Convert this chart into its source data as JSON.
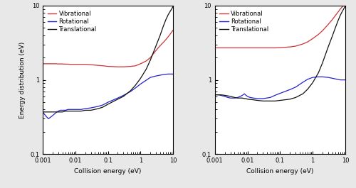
{
  "xlim": [
    0.001,
    10
  ],
  "ylim": [
    0.1,
    10
  ],
  "xlabel": "Collision energy (eV)",
  "ylabel": "Energy distribution (eV)",
  "legend_labels": [
    "Vibrational",
    "Rotational",
    "Translational"
  ],
  "legend_colors": [
    "#cc3333",
    "#2222cc",
    "#111111"
  ],
  "panel_left": {
    "vibrational": {
      "x": [
        0.001,
        0.0013,
        0.0016,
        0.002,
        0.0025,
        0.003,
        0.004,
        0.005,
        0.006,
        0.007,
        0.008,
        0.009,
        0.01,
        0.015,
        0.02,
        0.03,
        0.05,
        0.07,
        0.1,
        0.2,
        0.3,
        0.5,
        0.7,
        1.0,
        1.5,
        2.0,
        3.0,
        4.0,
        5.0,
        6.0,
        7.0,
        8.0,
        10.0
      ],
      "y": [
        1.65,
        1.65,
        1.65,
        1.65,
        1.65,
        1.64,
        1.64,
        1.63,
        1.63,
        1.62,
        1.62,
        1.62,
        1.62,
        1.62,
        1.62,
        1.6,
        1.57,
        1.55,
        1.52,
        1.5,
        1.5,
        1.52,
        1.55,
        1.65,
        1.8,
        2.0,
        2.5,
        2.9,
        3.2,
        3.5,
        3.8,
        4.1,
        4.7
      ]
    },
    "rotational": {
      "x": [
        0.001,
        0.0011,
        0.0013,
        0.0015,
        0.002,
        0.0025,
        0.003,
        0.0035,
        0.004,
        0.005,
        0.006,
        0.007,
        0.008,
        0.009,
        0.01,
        0.015,
        0.02,
        0.03,
        0.05,
        0.07,
        0.1,
        0.2,
        0.3,
        0.5,
        0.7,
        1.0,
        2.0,
        3.0,
        5.0,
        7.0,
        10.0
      ],
      "y": [
        0.37,
        0.35,
        0.32,
        0.3,
        0.33,
        0.36,
        0.38,
        0.39,
        0.39,
        0.39,
        0.4,
        0.4,
        0.4,
        0.4,
        0.4,
        0.4,
        0.41,
        0.42,
        0.44,
        0.46,
        0.5,
        0.57,
        0.62,
        0.7,
        0.78,
        0.88,
        1.08,
        1.13,
        1.18,
        1.2,
        1.2
      ]
    },
    "translational": {
      "x": [
        0.001,
        0.0012,
        0.0015,
        0.002,
        0.003,
        0.004,
        0.005,
        0.006,
        0.007,
        0.008,
        0.009,
        0.01,
        0.015,
        0.02,
        0.03,
        0.05,
        0.07,
        0.1,
        0.2,
        0.3,
        0.5,
        0.7,
        1.0,
        1.5,
        2.0,
        3.0,
        4.0,
        5.0,
        6.0,
        7.0,
        8.0,
        9.0,
        10.0
      ],
      "y": [
        0.37,
        0.37,
        0.37,
        0.37,
        0.37,
        0.37,
        0.38,
        0.38,
        0.38,
        0.38,
        0.38,
        0.38,
        0.38,
        0.39,
        0.39,
        0.41,
        0.43,
        0.47,
        0.55,
        0.6,
        0.72,
        0.85,
        1.05,
        1.4,
        1.85,
        2.9,
        4.0,
        5.3,
        6.5,
        7.5,
        8.3,
        9.0,
        9.8
      ]
    }
  },
  "panel_right": {
    "vibrational": {
      "x": [
        0.001,
        0.0013,
        0.0016,
        0.002,
        0.003,
        0.004,
        0.005,
        0.006,
        0.007,
        0.008,
        0.009,
        0.01,
        0.015,
        0.02,
        0.03,
        0.05,
        0.07,
        0.1,
        0.2,
        0.3,
        0.5,
        0.7,
        1.0,
        1.5,
        2.0,
        3.0,
        4.0,
        5.0,
        6.0,
        7.0,
        8.0,
        10.0
      ],
      "y": [
        2.7,
        2.7,
        2.7,
        2.7,
        2.7,
        2.7,
        2.7,
        2.7,
        2.7,
        2.7,
        2.7,
        2.7,
        2.7,
        2.7,
        2.7,
        2.7,
        2.7,
        2.72,
        2.78,
        2.85,
        3.05,
        3.25,
        3.6,
        4.1,
        4.6,
        5.6,
        6.5,
        7.4,
        8.2,
        9.0,
        9.6,
        10.5
      ]
    },
    "rotational": {
      "x": [
        0.001,
        0.0011,
        0.0013,
        0.0015,
        0.002,
        0.0025,
        0.003,
        0.004,
        0.005,
        0.006,
        0.007,
        0.008,
        0.009,
        0.01,
        0.012,
        0.015,
        0.02,
        0.03,
        0.05,
        0.07,
        0.1,
        0.2,
        0.3,
        0.5,
        0.7,
        1.0,
        1.5,
        2.0,
        3.0,
        5.0,
        7.0,
        10.0
      ],
      "y": [
        0.63,
        0.63,
        0.63,
        0.62,
        0.6,
        0.58,
        0.57,
        0.57,
        0.58,
        0.6,
        0.62,
        0.65,
        0.62,
        0.6,
        0.58,
        0.57,
        0.56,
        0.56,
        0.58,
        0.62,
        0.66,
        0.74,
        0.8,
        0.93,
        1.02,
        1.08,
        1.1,
        1.1,
        1.08,
        1.03,
        1.0,
        1.0
      ]
    },
    "translational": {
      "x": [
        0.001,
        0.0012,
        0.0015,
        0.002,
        0.003,
        0.004,
        0.005,
        0.006,
        0.007,
        0.008,
        0.009,
        0.01,
        0.015,
        0.02,
        0.03,
        0.05,
        0.07,
        0.1,
        0.2,
        0.3,
        0.5,
        0.7,
        1.0,
        1.5,
        2.0,
        3.0,
        4.0,
        5.0,
        6.0,
        7.0,
        8.0,
        9.0,
        10.0
      ],
      "y": [
        0.63,
        0.63,
        0.63,
        0.62,
        0.6,
        0.58,
        0.57,
        0.57,
        0.57,
        0.56,
        0.56,
        0.55,
        0.54,
        0.53,
        0.52,
        0.52,
        0.52,
        0.53,
        0.55,
        0.58,
        0.65,
        0.75,
        0.92,
        1.25,
        1.7,
        2.8,
        3.9,
        5.1,
        6.3,
        7.4,
        8.3,
        9.1,
        9.9
      ]
    }
  }
}
